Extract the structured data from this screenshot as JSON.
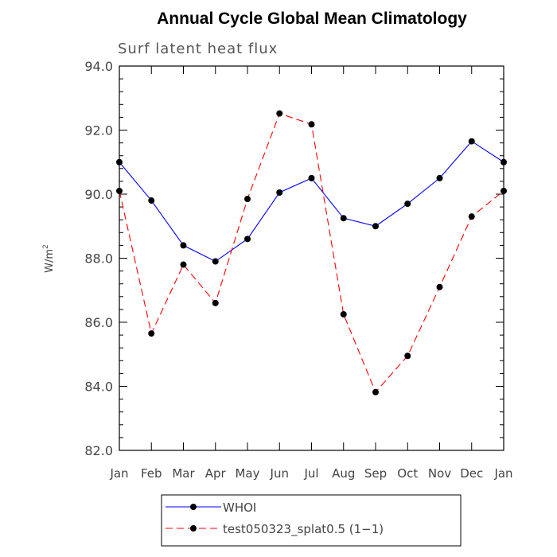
{
  "chart_data": {
    "type": "line",
    "title": "Annual Cycle Global Mean Climatology",
    "subtitle": "Surf latent heat flux",
    "ylabel": "W/m",
    "ylabel_sup": "2",
    "categories": [
      "Jan",
      "Feb",
      "Mar",
      "Apr",
      "May",
      "Jun",
      "Jul",
      "Aug",
      "Sep",
      "Oct",
      "Nov",
      "Dec",
      "Jan"
    ],
    "ylim": [
      82.0,
      94.0
    ],
    "yticks": [
      "82.0",
      "84.0",
      "86.0",
      "88.0",
      "90.0",
      "92.0",
      "94.0"
    ],
    "ytick_values": [
      82,
      84,
      86,
      88,
      90,
      92,
      94
    ],
    "grid": false,
    "legend_position": "bottom",
    "series": [
      {
        "name": "WHOI",
        "color": "#0000ff",
        "line_style": "solid",
        "marker": "circle",
        "values": [
          91.0,
          89.8,
          88.4,
          87.9,
          88.6,
          90.05,
          90.5,
          89.25,
          89.0,
          89.7,
          90.5,
          91.65,
          91.0
        ]
      },
      {
        "name": "test050323_splat0.5 (1−1)",
        "color": "#ff0000",
        "line_style": "dashed",
        "marker": "circle",
        "values": [
          90.1,
          85.65,
          87.8,
          86.6,
          89.85,
          92.52,
          92.18,
          86.25,
          83.82,
          84.95,
          87.1,
          89.3,
          90.1
        ]
      }
    ]
  }
}
